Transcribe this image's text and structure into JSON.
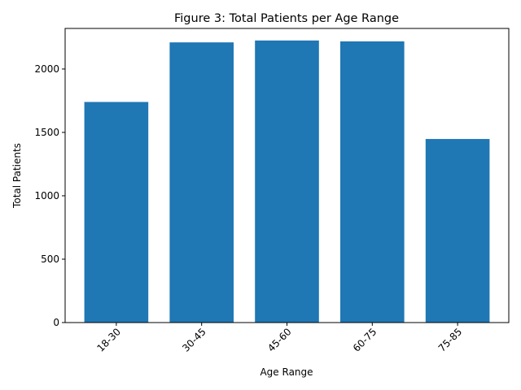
{
  "chart_data": {
    "type": "bar",
    "title": "Figure 3: Total Patients per Age Range",
    "xlabel": "Age Range",
    "ylabel": "Total Patients",
    "categories": [
      "18-30",
      "30-45",
      "45-60",
      "60-75",
      "75-85"
    ],
    "values": [
      1740,
      2210,
      2225,
      2218,
      1448
    ],
    "ylim": [
      0,
      2320
    ],
    "yticks": [
      0,
      500,
      1000,
      1500,
      2000
    ],
    "xtick_rotation": 45,
    "bar_color": "#1f77b4",
    "grid": false,
    "legend": "none"
  }
}
